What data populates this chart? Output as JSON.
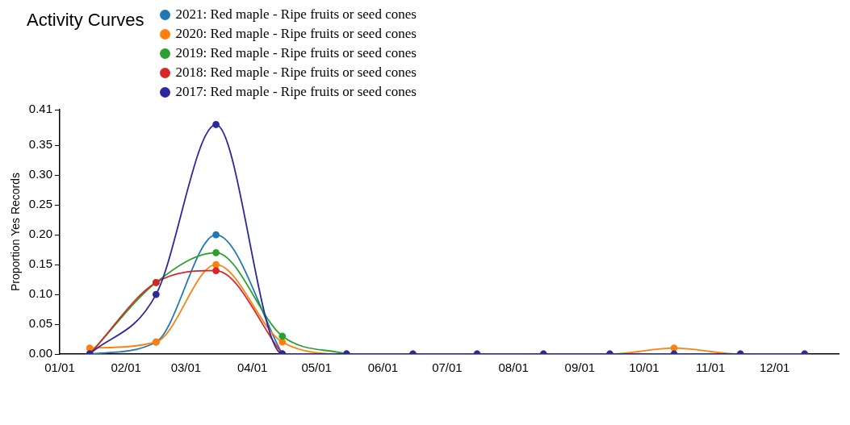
{
  "chart_data": {
    "type": "line",
    "title": "Activity Curves",
    "ylabel": "Proportion Yes Records",
    "legend": "top",
    "marker": "circle",
    "grid": false,
    "x": [
      "--01-15",
      "--02-15",
      "--03-15",
      "--04-15",
      "--05-15",
      "--06-15",
      "--07-15",
      "--08-15",
      "--09-15",
      "--10-15",
      "--11-15",
      "--12-15"
    ],
    "xlim": [
      "--01-01",
      "--12-31"
    ],
    "xticks": [
      {
        "value": "--01-01",
        "label": "01/01"
      },
      {
        "value": "--02-01",
        "label": "02/01"
      },
      {
        "value": "--03-01",
        "label": "03/01"
      },
      {
        "value": "--04-01",
        "label": "04/01"
      },
      {
        "value": "--05-01",
        "label": "05/01"
      },
      {
        "value": "--06-01",
        "label": "06/01"
      },
      {
        "value": "--07-01",
        "label": "07/01"
      },
      {
        "value": "--08-01",
        "label": "08/01"
      },
      {
        "value": "--09-01",
        "label": "09/01"
      },
      {
        "value": "--10-01",
        "label": "10/01"
      },
      {
        "value": "--11-01",
        "label": "11/01"
      },
      {
        "value": "--12-01",
        "label": "12/01"
      }
    ],
    "ylim": [
      0,
      0.41
    ],
    "yticks": [
      {
        "value": 0,
        "label": "0.00"
      },
      {
        "value": 0.05,
        "label": "0.05"
      },
      {
        "value": 0.1,
        "label": "0.10"
      },
      {
        "value": 0.15,
        "label": "0.15"
      },
      {
        "value": 0.2,
        "label": "0.20"
      },
      {
        "value": 0.25,
        "label": "0.25"
      },
      {
        "value": 0.3,
        "label": "0.30"
      },
      {
        "value": 0.35,
        "label": "0.35"
      },
      {
        "value": 0.41,
        "label": "0.41"
      }
    ],
    "series": [
      {
        "name": "2021: Red maple - Ripe fruits or seed cones",
        "color": "#1f77b4",
        "values": [
          0,
          0.02,
          0.2,
          0,
          null,
          null,
          null,
          null,
          null,
          null,
          null,
          null
        ]
      },
      {
        "name": "2020: Red maple - Ripe fruits or seed cones",
        "color": "#ff7f0e",
        "values": [
          0.01,
          0.02,
          0.15,
          0.02,
          0,
          0,
          0,
          0,
          0,
          0.01,
          0,
          0
        ]
      },
      {
        "name": "2019: Red maple - Ripe fruits or seed cones",
        "color": "#2ca02c",
        "values": [
          0,
          0.12,
          0.17,
          0.03,
          0,
          null,
          null,
          null,
          null,
          null,
          null,
          null
        ]
      },
      {
        "name": "2018: Red maple - Ripe fruits or seed cones",
        "color": "#d62728",
        "values": [
          0,
          0.12,
          0.14,
          0,
          null,
          null,
          null,
          null,
          null,
          null,
          null,
          null
        ]
      },
      {
        "name": "2017: Red maple - Ripe fruits or seed cones",
        "color": "#2a2a9e",
        "values": [
          0,
          0.1,
          0.385,
          0,
          0,
          0,
          0,
          0,
          0,
          0,
          0,
          0
        ]
      }
    ]
  }
}
